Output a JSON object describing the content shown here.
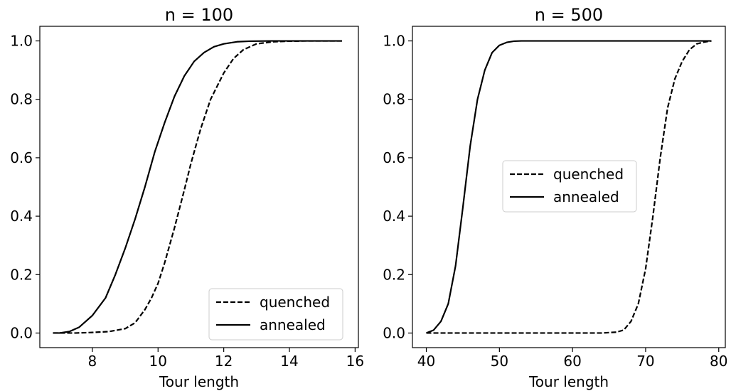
{
  "chart_data": [
    {
      "type": "line",
      "title": "n = 100",
      "xlabel": "Tour length",
      "ylabel": "",
      "xlim": [
        6.4,
        16.1
      ],
      "ylim": [
        -0.05,
        1.05
      ],
      "xticks": [
        8,
        10,
        12,
        14,
        16
      ],
      "yticks": [
        0.0,
        0.2,
        0.4,
        0.6,
        0.8,
        1.0
      ],
      "xtick_labels": [
        "8",
        "10",
        "12",
        "14",
        "16"
      ],
      "ytick_labels": [
        "0.0",
        "0.2",
        "0.4",
        "0.6",
        "0.8",
        "1.0"
      ],
      "grid": false,
      "legend_position": "lower-right",
      "series": [
        {
          "name": "quenched",
          "style": "dashed",
          "color": "#000000",
          "x": [
            6.8,
            7.5,
            8.0,
            8.5,
            9.0,
            9.3,
            9.6,
            9.8,
            10.0,
            10.2,
            10.5,
            10.8,
            11.0,
            11.3,
            11.6,
            12.0,
            12.3,
            12.6,
            13.0,
            13.5,
            14.0,
            14.5,
            15.6
          ],
          "y": [
            0.0,
            0.0,
            0.002,
            0.005,
            0.015,
            0.035,
            0.08,
            0.12,
            0.17,
            0.24,
            0.36,
            0.49,
            0.58,
            0.7,
            0.8,
            0.89,
            0.94,
            0.97,
            0.99,
            0.997,
            0.999,
            1.0,
            1.0
          ]
        },
        {
          "name": "annealed",
          "style": "solid",
          "color": "#000000",
          "x": [
            6.8,
            7.0,
            7.3,
            7.6,
            8.0,
            8.4,
            8.7,
            9.0,
            9.3,
            9.6,
            9.9,
            10.2,
            10.5,
            10.8,
            11.1,
            11.4,
            11.7,
            12.0,
            12.4,
            12.8,
            13.5,
            14.5,
            15.6
          ],
          "y": [
            0.0,
            0.0,
            0.005,
            0.02,
            0.06,
            0.12,
            0.2,
            0.29,
            0.39,
            0.5,
            0.62,
            0.72,
            0.81,
            0.88,
            0.93,
            0.96,
            0.98,
            0.99,
            0.997,
            0.999,
            1.0,
            1.0,
            1.0
          ]
        }
      ]
    },
    {
      "type": "line",
      "title": "n = 500",
      "xlabel": "Tour length",
      "ylabel": "",
      "xlim": [
        38.1,
        80.9
      ],
      "ylim": [
        -0.05,
        1.05
      ],
      "xticks": [
        40,
        50,
        60,
        70,
        80
      ],
      "yticks": [
        0.0,
        0.2,
        0.4,
        0.6,
        0.8,
        1.0
      ],
      "xtick_labels": [
        "40",
        "50",
        "60",
        "70",
        "80"
      ],
      "ytick_labels": [
        "0.0",
        "0.2",
        "0.4",
        "0.6",
        "0.8",
        "1.0"
      ],
      "grid": false,
      "legend_position": "center",
      "series": [
        {
          "name": "quenched",
          "style": "dashed",
          "color": "#000000",
          "x": [
            40.0,
            50.0,
            60.0,
            64.0,
            66.0,
            67.0,
            68.0,
            69.0,
            70.0,
            71.0,
            72.0,
            73.0,
            74.0,
            75.0,
            76.0,
            77.0,
            78.0,
            79.0
          ],
          "y": [
            0.0,
            0.0,
            0.0,
            0.0,
            0.003,
            0.01,
            0.04,
            0.1,
            0.22,
            0.4,
            0.6,
            0.77,
            0.87,
            0.93,
            0.97,
            0.99,
            0.996,
            1.0
          ]
        },
        {
          "name": "annealed",
          "style": "solid",
          "color": "#000000",
          "x": [
            40.0,
            41.0,
            42.0,
            43.0,
            44.0,
            45.0,
            46.0,
            47.0,
            48.0,
            49.0,
            50.0,
            51.0,
            52.0,
            53.0,
            60.0,
            70.0,
            79.0
          ],
          "y": [
            0.0,
            0.01,
            0.04,
            0.1,
            0.23,
            0.43,
            0.64,
            0.8,
            0.9,
            0.96,
            0.985,
            0.995,
            0.999,
            1.0,
            1.0,
            1.0,
            1.0
          ]
        }
      ]
    }
  ]
}
